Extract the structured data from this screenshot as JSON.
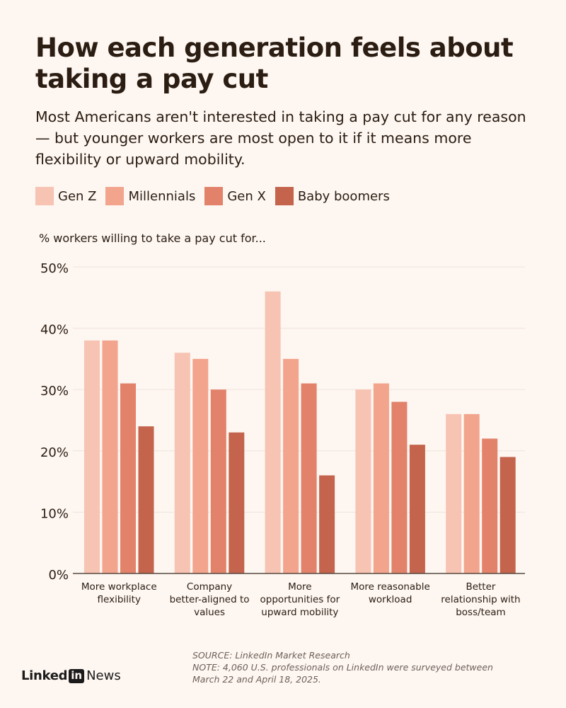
{
  "header": {
    "title": "How each generation feels about taking a pay cut",
    "subtitle": "Most Americans aren't interested in taking a pay cut for any reason — but younger workers are most open to it if it means more flexibility or upward mobility."
  },
  "legend": [
    {
      "label": "Gen Z",
      "color": "#f7c3b3"
    },
    {
      "label": "Millennials",
      "color": "#f2a48c"
    },
    {
      "label": "Gen X",
      "color": "#e2826a"
    },
    {
      "label": "Baby boomers",
      "color": "#c4644c"
    }
  ],
  "chart_data": {
    "type": "bar",
    "ylabel": "% workers willing to take a pay cut for...",
    "ylim": [
      0,
      50
    ],
    "yticks": [
      "0%",
      "10%",
      "20%",
      "30%",
      "40%",
      "50%"
    ],
    "grid": true,
    "legend_position": "top",
    "categories": [
      [
        "More workplace",
        "flexibility"
      ],
      [
        "Company",
        "better-aligned to",
        "values"
      ],
      [
        "More",
        "opportunities for",
        "upward mobility"
      ],
      [
        "More reasonable",
        "workload"
      ],
      [
        "Better",
        "relationship with",
        "boss/team"
      ]
    ],
    "series": [
      {
        "name": "Gen Z",
        "color": "#f7c3b3",
        "values": [
          38,
          36,
          46,
          30,
          26
        ]
      },
      {
        "name": "Millennials",
        "color": "#f2a48c",
        "values": [
          38,
          35,
          35,
          31,
          26
        ]
      },
      {
        "name": "Gen X",
        "color": "#e2826a",
        "values": [
          31,
          30,
          31,
          28,
          22
        ]
      },
      {
        "name": "Baby boomers",
        "color": "#c4644c",
        "values": [
          24,
          23,
          16,
          21,
          19
        ]
      }
    ]
  },
  "footer": {
    "source": "SOURCE: LinkedIn Market Research",
    "note_line1": "NOTE: 4,060 U.S. professionals on LinkedIn were surveyed between",
    "note_line2": "March 22 and April 18, 2025.",
    "logo_linked": "Linked",
    "logo_in": "in",
    "logo_news": "News"
  }
}
